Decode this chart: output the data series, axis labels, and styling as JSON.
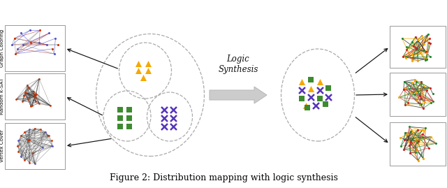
{
  "title": "Figure 2: Distribution mapping with logic synthesis",
  "title_fontsize": 9,
  "bg_color": "#ffffff",
  "left_labels": [
    "Graph Coloring",
    "Random k-SAT",
    "Vertex Cover"
  ],
  "arrow_color": "#111111",
  "logic_synthesis_text": "Logic\nSynthesis",
  "big_arrow_color": "#cccccc",
  "big_arrow_edge": "#bbbbbb",
  "triangle_color": "#f5a800",
  "square_color": "#3d8b2f",
  "cross_color": "#5533bb",
  "dashed_color": "#aaaaaa",
  "box_edge_color": "#999999",
  "node_color_left_orange": "#cc3300",
  "node_color_left_blue": "#5555cc",
  "left_edge_color_gc": [
    "#4444cc",
    "#aa3333",
    "#888888"
  ],
  "left_edge_color_ksat": "#333333",
  "left_edge_color_vc": "#333333",
  "right_edge_colors": [
    "#228833",
    "#f5a800",
    "#333333",
    "#cc4444"
  ],
  "right_node_colors": [
    "#f5a800",
    "#228833",
    "#cc2222"
  ],
  "fig_width": 6.4,
  "fig_height": 2.69,
  "fig_dpi": 100
}
